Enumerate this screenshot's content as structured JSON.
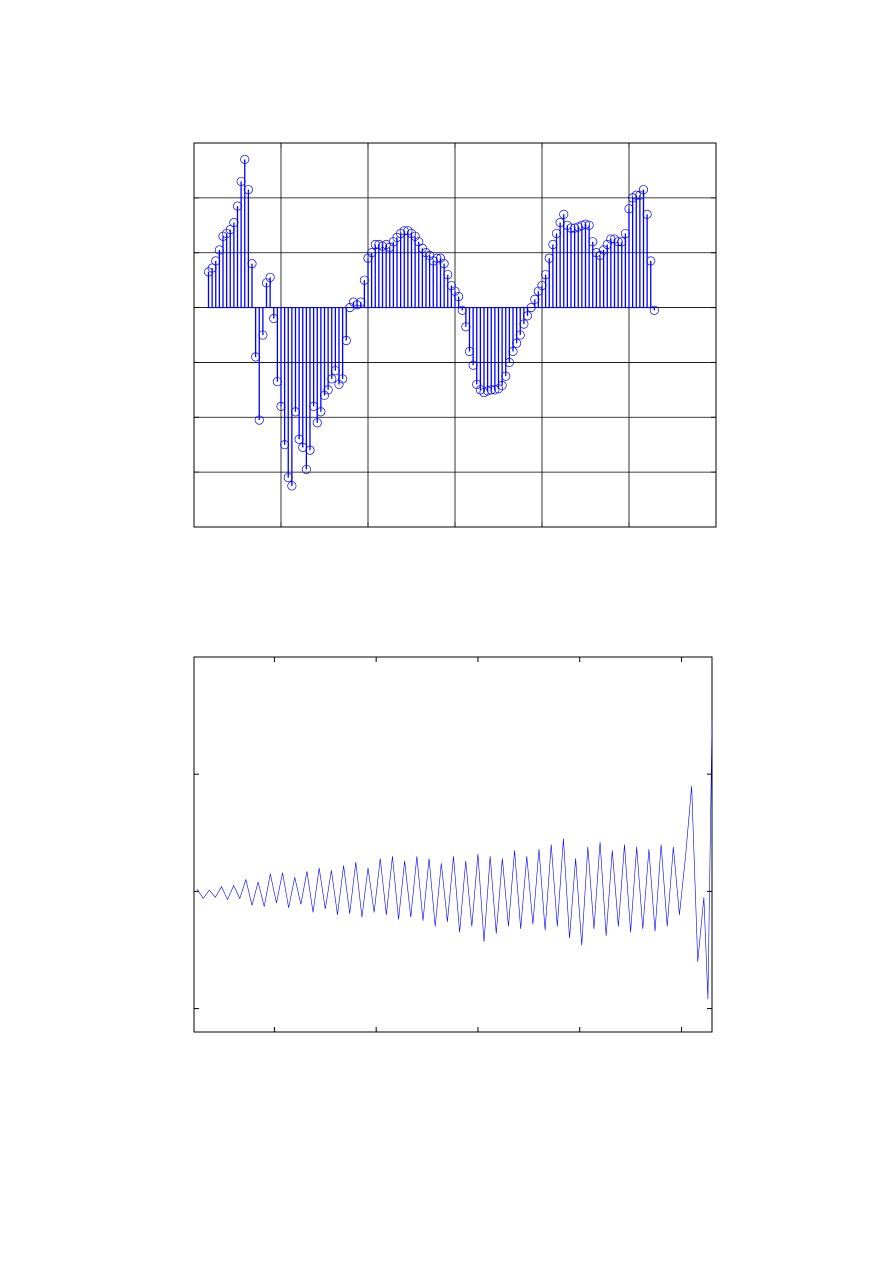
{
  "chart_data": [
    {
      "type": "stem",
      "color": "#0000ff",
      "grid": true,
      "xlim": [
        0,
        144
      ],
      "xticks": [
        0,
        24,
        48,
        72,
        96,
        120,
        144
      ],
      "ylim": [
        -4,
        3
      ],
      "yticks": [
        -4,
        -3,
        -2,
        -1,
        0,
        1,
        2,
        3
      ],
      "x": [
        4,
        5,
        6,
        7,
        8,
        9,
        10,
        11,
        12,
        13,
        14,
        15,
        16,
        17,
        18,
        19,
        20,
        21,
        22,
        23,
        24,
        25,
        26,
        27,
        28,
        29,
        30,
        31,
        32,
        33,
        34,
        35,
        36,
        37,
        38,
        39,
        40,
        41,
        42,
        43,
        44,
        45,
        46,
        47,
        48,
        49,
        50,
        51,
        52,
        53,
        54,
        55,
        56,
        57,
        58,
        59,
        60,
        61,
        62,
        63,
        64,
        65,
        66,
        67,
        68,
        69,
        70,
        71,
        72,
        73,
        74,
        75,
        76,
        77,
        78,
        79,
        80,
        81,
        82,
        83,
        84,
        85,
        86,
        87,
        88,
        89,
        90,
        91,
        92,
        93,
        94,
        95,
        96,
        97,
        98,
        99,
        100,
        101,
        102,
        103,
        104,
        105,
        106,
        107,
        108,
        109,
        110,
        111,
        112,
        113,
        114,
        115,
        116,
        117,
        118,
        119,
        120,
        121,
        122,
        123,
        124,
        125,
        126,
        127
      ],
      "values": [
        0.65,
        0.72,
        0.85,
        1.05,
        1.3,
        1.35,
        1.42,
        1.55,
        1.85,
        2.3,
        2.7,
        2.15,
        0.8,
        -0.9,
        -2.05,
        -0.5,
        0.45,
        0.55,
        -0.2,
        -1.35,
        -1.8,
        -2.5,
        -3.1,
        -3.25,
        -1.9,
        -2.4,
        -2.55,
        -2.95,
        -2.6,
        -1.8,
        -2.1,
        -1.9,
        -1.6,
        -1.5,
        -1.3,
        -1.15,
        -1.4,
        -1.3,
        -0.6,
        0.0,
        0.1,
        0.05,
        0.1,
        0.5,
        0.9,
        1.0,
        1.15,
        1.15,
        1.12,
        1.15,
        1.1,
        1.2,
        1.28,
        1.35,
        1.4,
        1.4,
        1.35,
        1.3,
        1.2,
        1.08,
        1.0,
        0.95,
        0.85,
        0.9,
        0.9,
        0.8,
        0.6,
        0.4,
        0.3,
        0.2,
        -0.05,
        -0.35,
        -0.8,
        -1.05,
        -1.4,
        -1.5,
        -1.55,
        -1.52,
        -1.5,
        -1.5,
        -1.48,
        -1.42,
        -1.25,
        -1.0,
        -0.8,
        -0.65,
        -0.5,
        -0.3,
        -0.15,
        0.0,
        0.15,
        0.3,
        0.4,
        0.6,
        0.9,
        1.15,
        1.35,
        1.55,
        1.7,
        1.5,
        1.45,
        1.45,
        1.47,
        1.5,
        1.52,
        1.5,
        1.2,
        1.0,
        0.95,
        1.05,
        1.15,
        1.25,
        1.25,
        1.2,
        1.2,
        1.35,
        1.8,
        2.0,
        2.05,
        2.05,
        2.15,
        1.7,
        0.85,
        -0.05
      ]
    },
    {
      "type": "line",
      "color": "#0000ff",
      "grid": false,
      "xlim": [
        21,
        530
      ],
      "xticks": [
        100,
        200,
        300,
        400,
        500
      ],
      "ylim": [
        -1.2,
        2
      ],
      "yticks": [
        -1,
        0,
        1
      ],
      "x": [
        24,
        30,
        36,
        42,
        48,
        54,
        60,
        66,
        72,
        78,
        84,
        90,
        96,
        102,
        108,
        114,
        120,
        126,
        132,
        138,
        144,
        150,
        156,
        162,
        168,
        174,
        180,
        186,
        192,
        198,
        204,
        210,
        216,
        222,
        228,
        234,
        240,
        246,
        252,
        258,
        264,
        270,
        276,
        282,
        288,
        294,
        300,
        306,
        312,
        318,
        324,
        330,
        336,
        342,
        348,
        354,
        360,
        366,
        372,
        378,
        384,
        390,
        396,
        402,
        408,
        414,
        420,
        426,
        432,
        438,
        444,
        450,
        456,
        462,
        468,
        474,
        480,
        486,
        492,
        498,
        504,
        510,
        516,
        522,
        526,
        530
      ],
      "values": [
        0.02,
        -0.06,
        0.01,
        -0.05,
        0.04,
        -0.07,
        0.05,
        -0.06,
        0.1,
        -0.12,
        0.08,
        -0.13,
        0.15,
        -0.1,
        0.16,
        -0.14,
        0.12,
        -0.11,
        0.17,
        -0.18,
        0.2,
        -0.15,
        0.18,
        -0.2,
        0.22,
        -0.19,
        0.25,
        -0.22,
        0.2,
        -0.18,
        0.28,
        -0.2,
        0.3,
        -0.24,
        0.26,
        -0.22,
        0.3,
        -0.25,
        0.28,
        -0.3,
        0.24,
        -0.26,
        0.3,
        -0.35,
        0.26,
        -0.3,
        0.32,
        -0.43,
        0.3,
        -0.36,
        0.28,
        -0.3,
        0.35,
        -0.32,
        0.3,
        -0.28,
        0.36,
        -0.33,
        0.4,
        -0.3,
        0.45,
        -0.4,
        0.28,
        -0.46,
        0.38,
        -0.32,
        0.42,
        -0.38,
        0.35,
        -0.3,
        0.4,
        -0.35,
        0.38,
        -0.32,
        0.36,
        -0.34,
        0.4,
        -0.3,
        0.38,
        -0.2,
        0.3,
        0.9,
        -0.6,
        -0.05,
        -0.92,
        1.45
      ]
    }
  ]
}
